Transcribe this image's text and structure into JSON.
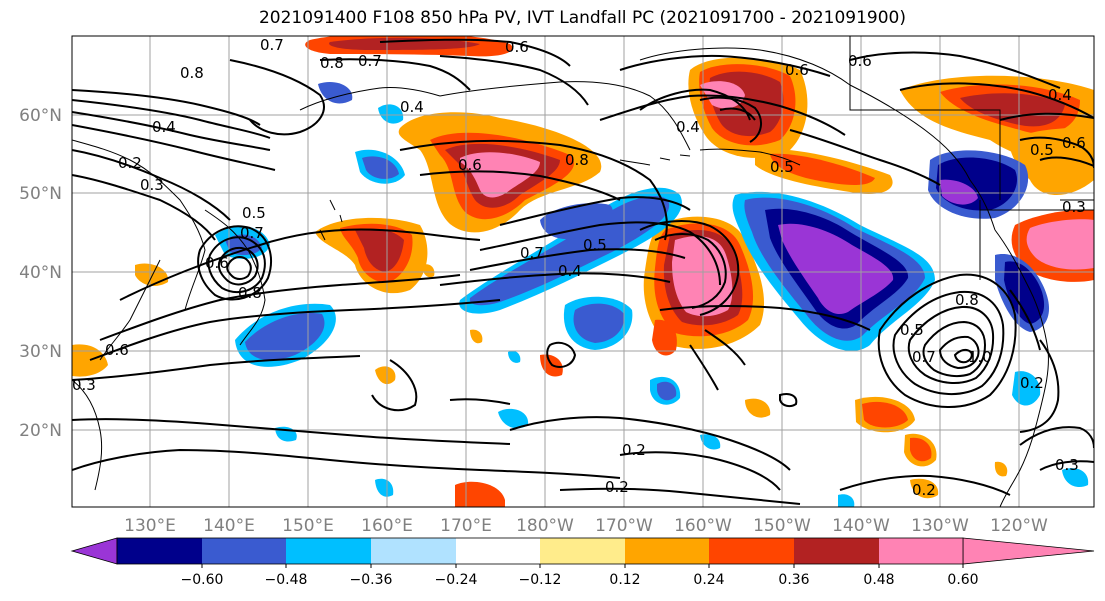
{
  "title": "2021091400 F108 850 hPa PV, IVT Landfall PC (2021091700 - 2021091900)",
  "lat_labels": [
    "60°N",
    "50°N",
    "40°N",
    "30°N",
    "20°N"
  ],
  "lon_labels": [
    "130°E",
    "140°E",
    "150°E",
    "160°E",
    "170°E",
    "180°W",
    "170°W",
    "160°W",
    "150°W",
    "140°W",
    "130°W",
    "120°W"
  ],
  "colorbar": {
    "colors": [
      "#9a35d6",
      "#00008b",
      "#3a5bd0",
      "#00bfff",
      "#b0e2ff",
      "#ffffff",
      "#ffec8b",
      "#ffa500",
      "#ff4500",
      "#b22222",
      "#ff83b4"
    ],
    "tick_labels": [
      "−0.60",
      "−0.48",
      "−0.36",
      "−0.24",
      "−0.12",
      "0.12",
      "0.24",
      "0.36",
      "0.48",
      "0.60"
    ]
  },
  "contour_labels": [
    "0.7",
    "0.8",
    "0.6",
    "0.8",
    "0.7",
    "0.4",
    "0.2",
    "0.3",
    "0.4",
    "0.6",
    "0.8",
    "0.7",
    "0.5",
    "0.4",
    "0.6",
    "0.5",
    "0.8",
    "0.6",
    "0.3",
    "0.2",
    "0.2",
    "0.2",
    "0.5",
    "0.7",
    "1.0",
    "0.8",
    "0.2",
    "0.3",
    "0.6",
    "0.4",
    "0.5",
    "0.6",
    "0.4",
    "0.7",
    "0.5",
    "0.6",
    "0.3"
  ]
}
